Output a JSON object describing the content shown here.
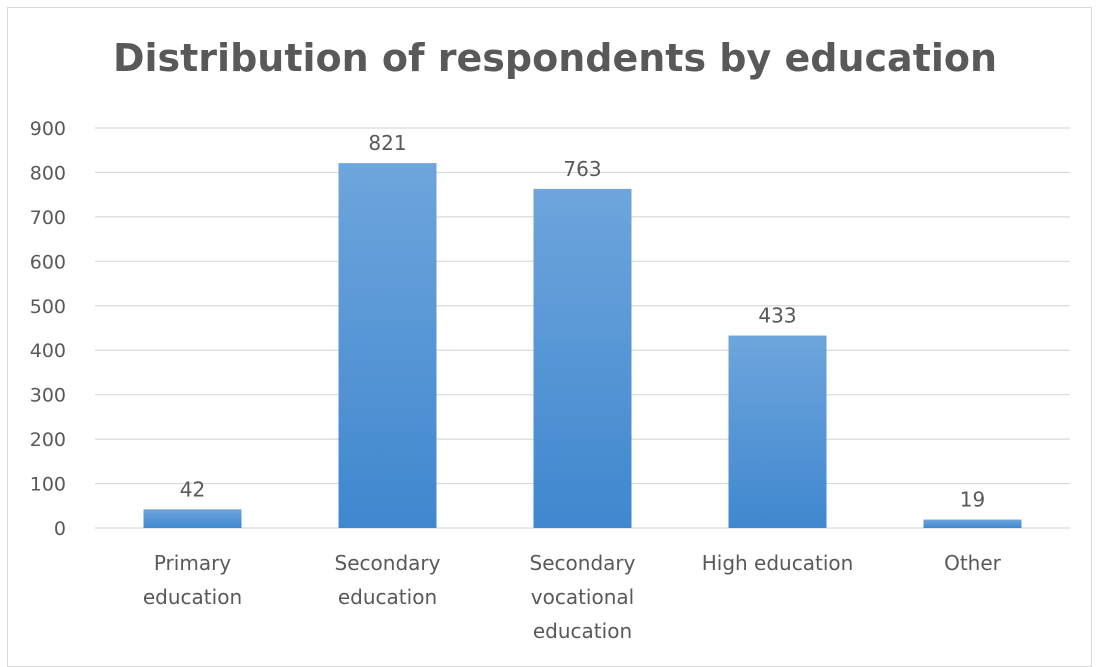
{
  "chart_data": {
    "type": "bar",
    "title": "Distribution of respondents by education",
    "categories": [
      [
        "Primary",
        "education"
      ],
      [
        "Secondary",
        "education"
      ],
      [
        "Secondary",
        "vocational",
        "education"
      ],
      [
        "High education"
      ],
      [
        "Other"
      ]
    ],
    "values": [
      42,
      821,
      763,
      433,
      19
    ],
    "ylim": [
      0,
      900
    ],
    "yticks": [
      0,
      100,
      200,
      300,
      400,
      500,
      600,
      700,
      800,
      900
    ],
    "grid": true,
    "legend": "none",
    "data_labels": true,
    "colors": {
      "bar_top": "#6ea5dc",
      "bar_bottom": "#3f87cf",
      "grid": "#d9d9d9",
      "text": "#595959"
    }
  }
}
